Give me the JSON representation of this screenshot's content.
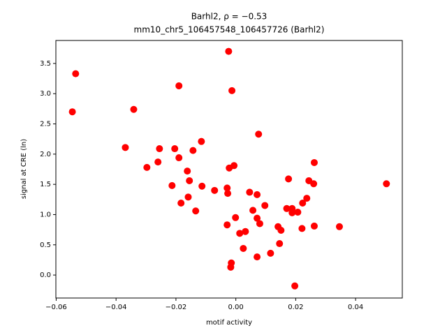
{
  "chart_data": {
    "type": "scatter",
    "title": "Barhl2, ρ = −0.53",
    "subtitle": "mm10_chr5_106457548_106457726 (Barhl2)",
    "x_label": "motif activity",
    "y_label": "signal at CRE (ln)",
    "color": "#ff0000",
    "xlim": [
      -0.0601,
      0.0556
    ],
    "ylim": [
      -0.38,
      3.88
    ],
    "xticks": [
      {
        "value": -0.06,
        "label": "−0.06"
      },
      {
        "value": -0.04,
        "label": "−0.04"
      },
      {
        "value": -0.02,
        "label": "−0.02"
      },
      {
        "value": 0,
        "label": "0.00"
      },
      0.02,
      0.04
    ],
    "yticks": [
      {
        "value": 0,
        "label": "0.0"
      },
      0.5,
      {
        "value": 1,
        "label": "1.0"
      },
      1.5,
      {
        "value": 2,
        "label": "2.0"
      },
      2.5,
      {
        "value": 3,
        "label": "3.0"
      },
      3.5
    ],
    "x": [
      -0.0535,
      -0.0546,
      -0.0341,
      -0.0369,
      -0.0024,
      -0.019,
      -0.0013,
      0.0076,
      -0.0255,
      -0.0204,
      -0.0143,
      -0.0115,
      -0.0297,
      -0.026,
      -0.019,
      -0.0162,
      -0.0155,
      -0.0213,
      -0.0113,
      -0.0006,
      -0.0022,
      -0.0071,
      -0.0029,
      -0.0027,
      -0.0159,
      -0.0183,
      -0.0134,
      0.0046,
      0.0071,
      0.0097,
      0.0057,
      0.0176,
      0.0262,
      0.0244,
      0.026,
      0.0503,
      0.0237,
      0.0223,
      0.017,
      0.0188,
      0.0188,
      0.0207,
      -0.0029,
      -0.0001,
      0.0071,
      0.008,
      0.0141,
      0.0151,
      0.0221,
      0.0262,
      0.0346,
      0.0013,
      0.0032,
      0.0025,
      0.0146,
      0.0116,
      0.0071,
      -0.0015,
      -0.0017,
      0.0197
    ],
    "values": [
      3.33,
      2.7,
      2.74,
      2.11,
      3.7,
      3.13,
      3.05,
      2.33,
      2.09,
      2.09,
      2.06,
      2.21,
      1.78,
      1.87,
      1.94,
      1.72,
      1.56,
      1.48,
      1.47,
      1.81,
      1.77,
      1.4,
      1.44,
      1.35,
      1.29,
      1.19,
      1.06,
      1.37,
      1.33,
      1.15,
      1.07,
      1.59,
      1.86,
      1.56,
      1.51,
      1.51,
      1.27,
      1.19,
      1.1,
      1.1,
      1.03,
      1.04,
      0.83,
      0.95,
      0.94,
      0.85,
      0.8,
      0.74,
      0.77,
      0.81,
      0.8,
      0.69,
      0.72,
      0.44,
      0.52,
      0.36,
      0.3,
      0.2,
      0.13,
      -0.18
    ]
  }
}
